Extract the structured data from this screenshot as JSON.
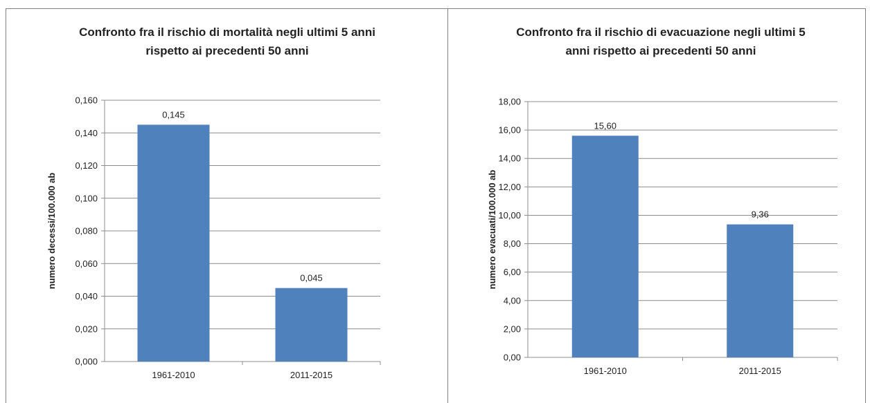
{
  "chart_data": [
    {
      "type": "bar",
      "title_lines": [
        "Confronto fra il rischio di mortalità negli ultimi 5 anni",
        "rispetto ai precedenti 50 anni"
      ],
      "categories": [
        "1961-2010",
        "2011-2015"
      ],
      "values": [
        0.145,
        0.045
      ],
      "data_labels": [
        "0,145",
        "0,045"
      ],
      "xlabel": "",
      "ylabel": "numero decessi/100.000 ab",
      "ylim": [
        0,
        0.16
      ],
      "yticks": [
        0.0,
        0.02,
        0.04,
        0.06,
        0.08,
        0.1,
        0.12,
        0.14,
        0.16
      ],
      "ytick_labels": [
        "0,000",
        "0,020",
        "0,040",
        "0,060",
        "0,080",
        "0,100",
        "0,120",
        "0,140",
        "0,160"
      ],
      "grid": true,
      "legend": "none",
      "bar_color": "#4f81bd"
    },
    {
      "type": "bar",
      "title_lines": [
        "Confronto fra il rischio di evacuazione negli ultimi 5",
        "anni rispetto ai precedenti 50 anni"
      ],
      "categories": [
        "1961-2010",
        "2011-2015"
      ],
      "values": [
        15.6,
        9.36
      ],
      "data_labels": [
        "15,60",
        "9,36"
      ],
      "xlabel": "",
      "ylabel": "numero evacuati/100.000 ab",
      "ylim": [
        0,
        18
      ],
      "yticks": [
        0,
        2,
        4,
        6,
        8,
        10,
        12,
        14,
        16,
        18
      ],
      "ytick_labels": [
        "0,00",
        "2,00",
        "4,00",
        "6,00",
        "8,00",
        "10,00",
        "12,00",
        "14,00",
        "16,00",
        "18,00"
      ],
      "grid": true,
      "legend": "none",
      "bar_color": "#4f81bd"
    }
  ]
}
